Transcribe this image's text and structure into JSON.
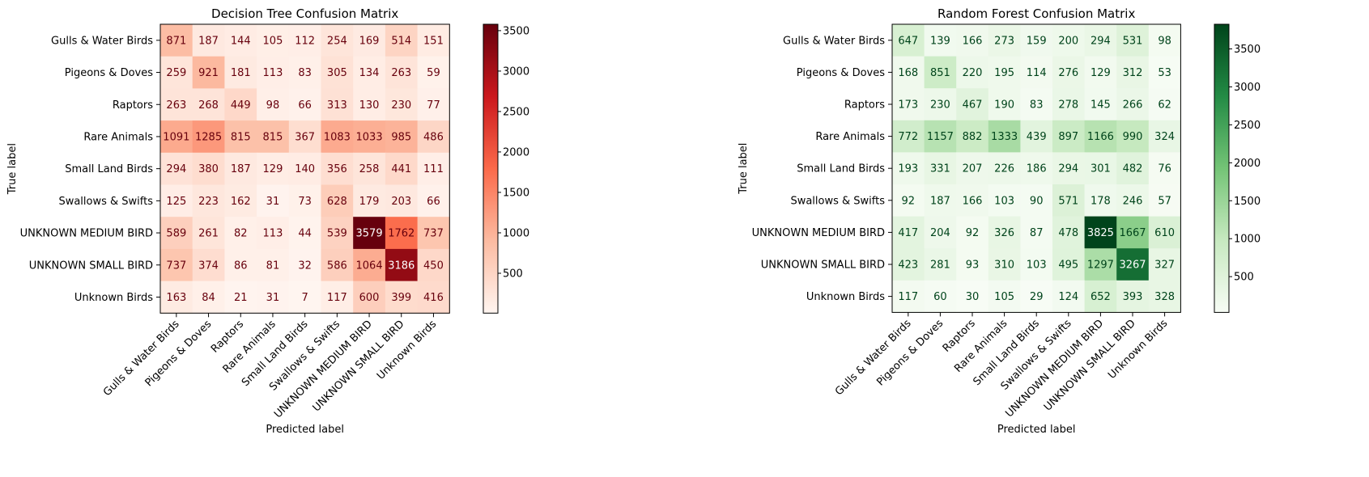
{
  "chart_data": [
    {
      "type": "heatmap",
      "title": "Decision Tree Confusion Matrix",
      "xlabel": "Predicted label",
      "ylabel": "True label",
      "colormap": "Reds",
      "colors": [
        "#fff5f0",
        "#fcbba1",
        "#fb6a4a",
        "#cb181d",
        "#67000d"
      ],
      "text_light_color": "#ffffff",
      "text_dark_color": "#67000d",
      "vmin": 7,
      "vmax": 3579,
      "categories": [
        "Gulls & Water Birds",
        "Pigeons & Doves",
        "Raptors",
        "Rare Animals",
        "Small Land Birds",
        "Swallows & Swifts",
        "UNKNOWN MEDIUM BIRD",
        "UNKNOWN SMALL BIRD",
        "Unknown Birds"
      ],
      "colorbar_ticks": [
        "500",
        "1000",
        "1500",
        "2000",
        "2500",
        "3000",
        "3500"
      ],
      "matrix": [
        [
          871,
          187,
          144,
          105,
          112,
          254,
          169,
          514,
          151
        ],
        [
          259,
          921,
          181,
          113,
          83,
          305,
          134,
          263,
          59
        ],
        [
          263,
          268,
          449,
          98,
          66,
          313,
          130,
          230,
          77
        ],
        [
          1091,
          1285,
          815,
          815,
          367,
          1083,
          1033,
          985,
          486
        ],
        [
          294,
          380,
          187,
          129,
          140,
          356,
          258,
          441,
          111
        ],
        [
          125,
          223,
          162,
          31,
          73,
          628,
          179,
          203,
          66
        ],
        [
          589,
          261,
          82,
          113,
          44,
          539,
          3579,
          1762,
          737
        ],
        [
          737,
          374,
          86,
          81,
          32,
          586,
          1064,
          3186,
          450
        ],
        [
          163,
          84,
          21,
          31,
          7,
          117,
          600,
          399,
          416
        ]
      ]
    },
    {
      "type": "heatmap",
      "title": "Random Forest Confusion Matrix",
      "xlabel": "Predicted label",
      "ylabel": "True label",
      "colormap": "Greens",
      "colors": [
        "#f7fcf5",
        "#c7e9c0",
        "#74c476",
        "#238b45",
        "#00441b"
      ],
      "text_light_color": "#ffffff",
      "text_dark_color": "#00441b",
      "vmin": 29,
      "vmax": 3825,
      "categories": [
        "Gulls & Water Birds",
        "Pigeons & Doves",
        "Raptors",
        "Rare Animals",
        "Small Land Birds",
        "Swallows & Swifts",
        "UNKNOWN MEDIUM BIRD",
        "UNKNOWN SMALL BIRD",
        "Unknown Birds"
      ],
      "colorbar_ticks": [
        "500",
        "1000",
        "1500",
        "2000",
        "2500",
        "3000",
        "3500"
      ],
      "matrix": [
        [
          647,
          139,
          166,
          273,
          159,
          200,
          294,
          531,
          98
        ],
        [
          168,
          851,
          220,
          195,
          114,
          276,
          129,
          312,
          53
        ],
        [
          173,
          230,
          467,
          190,
          83,
          278,
          145,
          266,
          62
        ],
        [
          772,
          1157,
          882,
          1333,
          439,
          897,
          1166,
          990,
          324
        ],
        [
          193,
          331,
          207,
          226,
          186,
          294,
          301,
          482,
          76
        ],
        [
          92,
          187,
          166,
          103,
          90,
          571,
          178,
          246,
          57
        ],
        [
          417,
          204,
          92,
          326,
          87,
          478,
          3825,
          1667,
          610
        ],
        [
          423,
          281,
          93,
          310,
          103,
          495,
          1297,
          3267,
          327
        ],
        [
          117,
          60,
          30,
          105,
          29,
          124,
          652,
          393,
          328
        ]
      ]
    }
  ]
}
